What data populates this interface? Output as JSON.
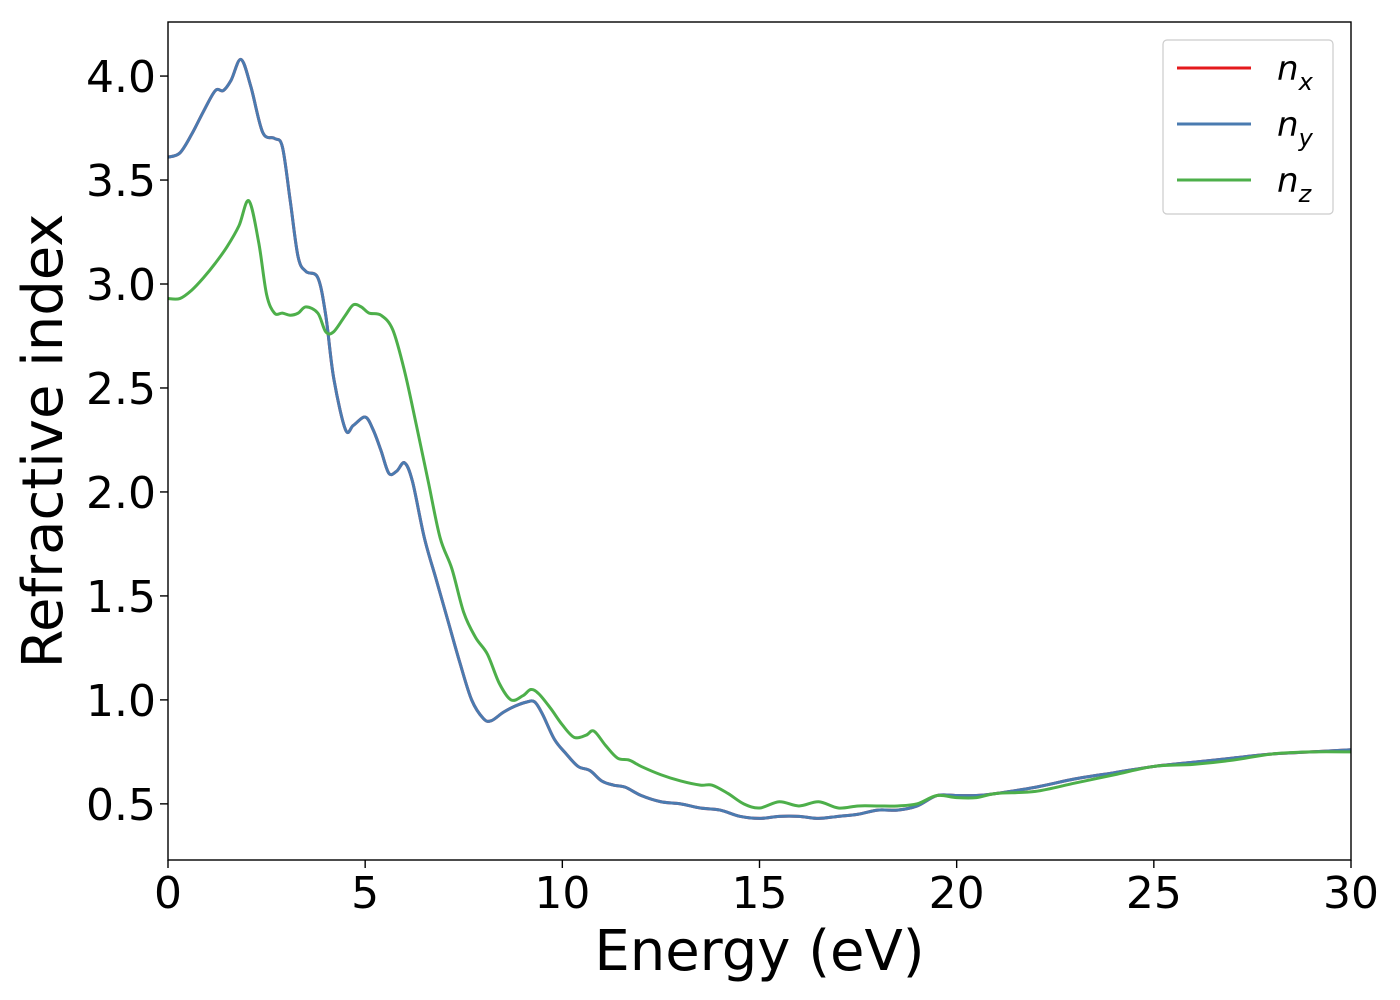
{
  "chart_data": {
    "type": "line",
    "title": "",
    "xlabel": "Energy (eV)",
    "ylabel": "Refractive index",
    "xlim": [
      0,
      30
    ],
    "ylim": [
      0.23,
      4.26
    ],
    "xticks": [
      0,
      5,
      10,
      15,
      20,
      25,
      30
    ],
    "xtick_labels": [
      "0",
      "5",
      "10",
      "15",
      "20",
      "25",
      "30"
    ],
    "yticks": [
      0.5,
      1.0,
      1.5,
      2.0,
      2.5,
      3.0,
      3.5,
      4.0
    ],
    "ytick_labels": [
      "0.5",
      "1.0",
      "1.5",
      "2.0",
      "2.5",
      "3.0",
      "3.5",
      "4.0"
    ],
    "grid": false,
    "legend_position": "top-right",
    "series": [
      {
        "name": "n_x",
        "legend_base": "n",
        "legend_sub": "x",
        "color": "#e41a1c",
        "x": [
          0,
          0.3,
          0.6,
          0.9,
          1.2,
          1.4,
          1.6,
          1.85,
          2.1,
          2.4,
          2.7,
          2.9,
          3.1,
          3.3,
          3.5,
          3.8,
          4.0,
          4.2,
          4.5,
          4.7,
          5.0,
          5.2,
          5.4,
          5.6,
          5.8,
          6.0,
          6.2,
          6.5,
          6.8,
          7.1,
          7.4,
          7.7,
          8.0,
          8.2,
          8.5,
          8.8,
          9.1,
          9.3,
          9.5,
          9.8,
          10.1,
          10.4,
          10.7,
          11.0,
          11.3,
          11.6,
          12.0,
          12.5,
          13.0,
          13.5,
          14.0,
          14.5,
          15.0,
          15.5,
          16.0,
          16.5,
          17.0,
          17.5,
          18.0,
          18.5,
          19.0,
          19.5,
          20.0,
          20.5,
          21.0,
          22.0,
          23.0,
          24.0,
          25.0,
          26.0,
          27.0,
          28.0,
          29.0,
          30.0
        ],
        "values": [
          3.61,
          3.63,
          3.72,
          3.83,
          3.93,
          3.93,
          3.98,
          4.08,
          3.95,
          3.73,
          3.7,
          3.66,
          3.4,
          3.13,
          3.06,
          3.03,
          2.85,
          2.55,
          2.3,
          2.32,
          2.36,
          2.3,
          2.2,
          2.09,
          2.1,
          2.14,
          2.05,
          1.78,
          1.58,
          1.38,
          1.18,
          1.0,
          0.91,
          0.9,
          0.94,
          0.97,
          0.99,
          0.99,
          0.93,
          0.81,
          0.74,
          0.68,
          0.66,
          0.61,
          0.59,
          0.58,
          0.54,
          0.51,
          0.5,
          0.48,
          0.47,
          0.44,
          0.43,
          0.44,
          0.44,
          0.43,
          0.44,
          0.45,
          0.47,
          0.47,
          0.49,
          0.54,
          0.54,
          0.54,
          0.55,
          0.58,
          0.62,
          0.65,
          0.68,
          0.7,
          0.72,
          0.74,
          0.75,
          0.76
        ]
      },
      {
        "name": "n_y",
        "legend_base": "n",
        "legend_sub": "y",
        "color": "#4a7bb0",
        "x": [
          0,
          0.3,
          0.6,
          0.9,
          1.2,
          1.4,
          1.6,
          1.85,
          2.1,
          2.4,
          2.7,
          2.9,
          3.1,
          3.3,
          3.5,
          3.8,
          4.0,
          4.2,
          4.5,
          4.7,
          5.0,
          5.2,
          5.4,
          5.6,
          5.8,
          6.0,
          6.2,
          6.5,
          6.8,
          7.1,
          7.4,
          7.7,
          8.0,
          8.2,
          8.5,
          8.8,
          9.1,
          9.3,
          9.5,
          9.8,
          10.1,
          10.4,
          10.7,
          11.0,
          11.3,
          11.6,
          12.0,
          12.5,
          13.0,
          13.5,
          14.0,
          14.5,
          15.0,
          15.5,
          16.0,
          16.5,
          17.0,
          17.5,
          18.0,
          18.5,
          19.0,
          19.5,
          20.0,
          20.5,
          21.0,
          22.0,
          23.0,
          24.0,
          25.0,
          26.0,
          27.0,
          28.0,
          29.0,
          30.0
        ],
        "values": [
          3.61,
          3.63,
          3.72,
          3.83,
          3.93,
          3.93,
          3.98,
          4.08,
          3.95,
          3.73,
          3.7,
          3.66,
          3.4,
          3.13,
          3.06,
          3.03,
          2.85,
          2.55,
          2.3,
          2.32,
          2.36,
          2.3,
          2.2,
          2.09,
          2.1,
          2.14,
          2.05,
          1.78,
          1.58,
          1.38,
          1.18,
          1.0,
          0.91,
          0.9,
          0.94,
          0.97,
          0.99,
          0.99,
          0.93,
          0.81,
          0.74,
          0.68,
          0.66,
          0.61,
          0.59,
          0.58,
          0.54,
          0.51,
          0.5,
          0.48,
          0.47,
          0.44,
          0.43,
          0.44,
          0.44,
          0.43,
          0.44,
          0.45,
          0.47,
          0.47,
          0.49,
          0.54,
          0.54,
          0.54,
          0.55,
          0.58,
          0.62,
          0.65,
          0.68,
          0.7,
          0.72,
          0.74,
          0.75,
          0.76
        ]
      },
      {
        "name": "n_z",
        "legend_base": "n",
        "legend_sub": "z",
        "color": "#4daf4a",
        "x": [
          0,
          0.3,
          0.6,
          0.9,
          1.2,
          1.5,
          1.8,
          2.05,
          2.3,
          2.5,
          2.7,
          2.9,
          3.1,
          3.3,
          3.5,
          3.8,
          4.0,
          4.2,
          4.5,
          4.7,
          4.9,
          5.1,
          5.4,
          5.7,
          6.0,
          6.3,
          6.6,
          6.9,
          7.2,
          7.5,
          7.8,
          8.1,
          8.4,
          8.7,
          9.0,
          9.2,
          9.4,
          9.7,
          10.0,
          10.3,
          10.6,
          10.8,
          11.1,
          11.4,
          11.7,
          12.0,
          12.5,
          13.0,
          13.5,
          13.8,
          14.2,
          14.6,
          15.0,
          15.5,
          16.0,
          16.5,
          17.0,
          17.5,
          18.0,
          18.5,
          19.0,
          19.5,
          20.0,
          20.5,
          21.0,
          22.0,
          23.0,
          24.0,
          25.0,
          26.0,
          27.0,
          28.0,
          29.0,
          30.0
        ],
        "values": [
          2.93,
          2.93,
          2.97,
          3.03,
          3.1,
          3.18,
          3.28,
          3.4,
          3.2,
          2.95,
          2.86,
          2.86,
          2.85,
          2.86,
          2.89,
          2.86,
          2.77,
          2.77,
          2.85,
          2.9,
          2.89,
          2.86,
          2.85,
          2.78,
          2.58,
          2.32,
          2.05,
          1.78,
          1.63,
          1.42,
          1.3,
          1.22,
          1.08,
          1.0,
          1.02,
          1.05,
          1.03,
          0.96,
          0.88,
          0.82,
          0.83,
          0.85,
          0.78,
          0.72,
          0.71,
          0.68,
          0.64,
          0.61,
          0.59,
          0.59,
          0.55,
          0.5,
          0.48,
          0.51,
          0.49,
          0.51,
          0.48,
          0.49,
          0.49,
          0.49,
          0.5,
          0.54,
          0.53,
          0.53,
          0.55,
          0.56,
          0.6,
          0.64,
          0.68,
          0.69,
          0.71,
          0.74,
          0.75,
          0.75
        ]
      }
    ]
  }
}
